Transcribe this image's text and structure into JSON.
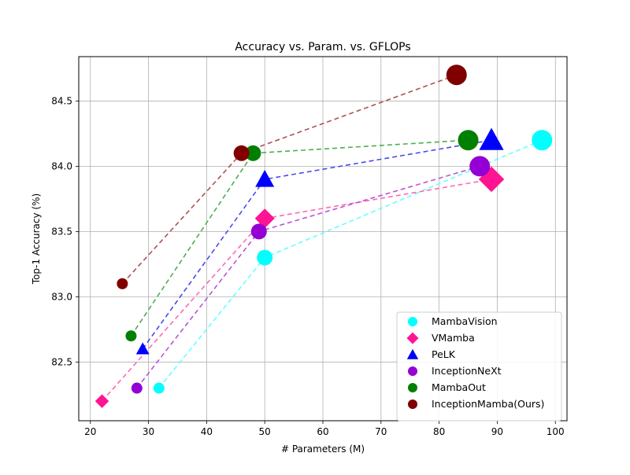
{
  "chart_data": {
    "type": "scatter",
    "title": "Accuracy vs. Param. vs. GFLOPs",
    "xlabel": "# Parameters (M)",
    "ylabel": "Top-1 Accuracy (%)",
    "xlim": [
      18,
      102
    ],
    "ylim": [
      82.05,
      84.84
    ],
    "xticks": [
      20,
      30,
      40,
      50,
      60,
      70,
      80,
      90,
      100
    ],
    "yticks": [
      82.5,
      83.0,
      83.5,
      84.0,
      84.5
    ],
    "ytick_labels": [
      "82.5",
      "83.0",
      "83.5",
      "84.0",
      "84.5"
    ],
    "grid": true,
    "legend_position": "bottom-right",
    "series": [
      {
        "name": "MambaVision",
        "marker": "circle",
        "color": "#00ffff",
        "line_color": "#66ffff",
        "x": [
          31.8,
          50.0,
          97.7
        ],
        "y": [
          82.3,
          83.3,
          84.2
        ],
        "size": [
          1,
          2,
          3
        ]
      },
      {
        "name": "VMamba",
        "marker": "diamond",
        "color": "#ff1493",
        "line_color": "#ff69b4",
        "x": [
          22.0,
          50.0,
          89.0
        ],
        "y": [
          82.2,
          83.6,
          83.9
        ],
        "size": [
          1,
          2,
          3
        ]
      },
      {
        "name": "PeLK",
        "marker": "triangle",
        "color": "#0000ff",
        "line_color": "#4b4bee",
        "x": [
          29.0,
          50.0,
          89.0
        ],
        "y": [
          82.6,
          83.9,
          84.2
        ],
        "size": [
          1,
          2,
          3
        ]
      },
      {
        "name": "InceptionNeXt",
        "marker": "circle",
        "color": "#9400d3",
        "line_color": "#ba55d3",
        "x": [
          28.0,
          49.0,
          87.0
        ],
        "y": [
          82.3,
          83.5,
          84.0
        ],
        "size": [
          1,
          2,
          3
        ]
      },
      {
        "name": "MambaOut",
        "marker": "circle",
        "color": "#008000",
        "line_color": "#4caf50",
        "x": [
          27.0,
          48.0,
          85.0
        ],
        "y": [
          82.7,
          84.1,
          84.2
        ],
        "size": [
          1,
          2,
          3
        ]
      },
      {
        "name": "InceptionMamba(Ours)",
        "marker": "circle",
        "color": "#800000",
        "line_color": "#b05050",
        "x": [
          25.5,
          46.0,
          83.0
        ],
        "y": [
          83.1,
          84.1,
          84.7
        ],
        "size": [
          1,
          2,
          3
        ]
      }
    ]
  }
}
